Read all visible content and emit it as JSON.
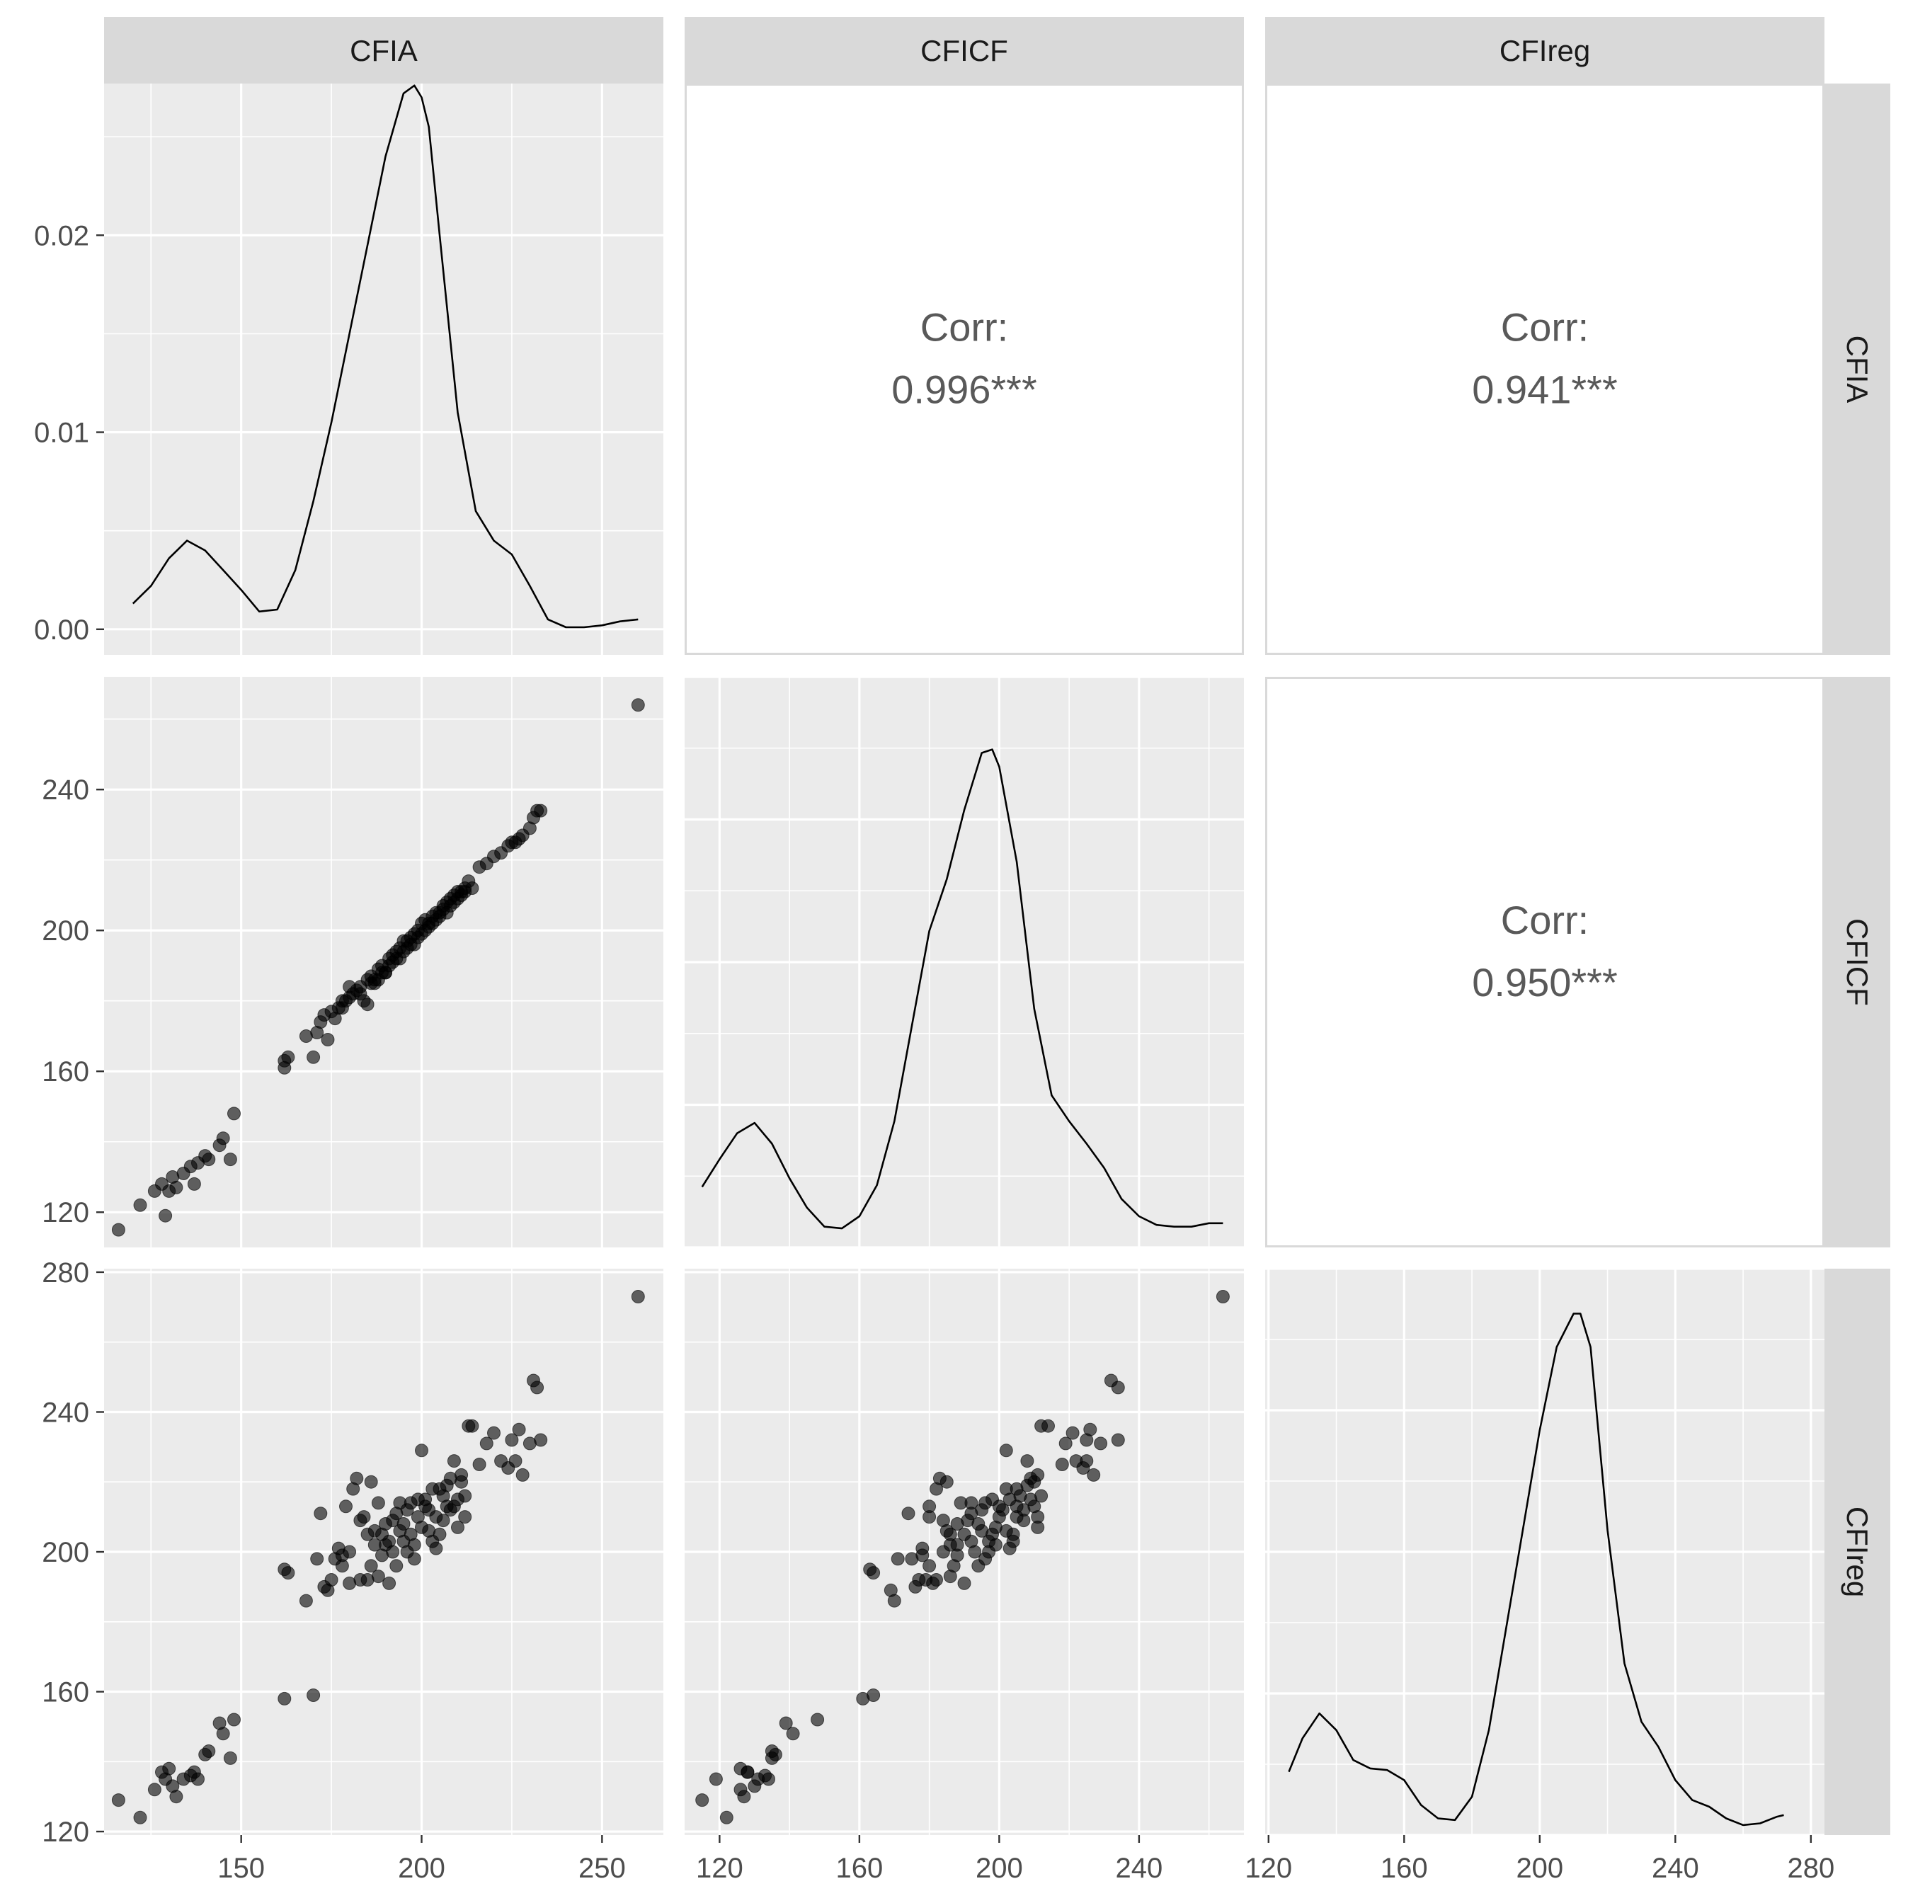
{
  "chart_data": {
    "type": "scatter",
    "title": "",
    "variables": [
      "CFIA",
      "CFICF",
      "CFIreg"
    ],
    "colors": {
      "panel_bg": "#ebebeb",
      "grid": "#ffffff",
      "strip_bg": "#d9d9d9",
      "point": "#000000",
      "line": "#000000",
      "text": "#4d4d4d",
      "corr_text": "#595959",
      "corr_panel_border": "#d9d9d9"
    },
    "x_axes": [
      {
        "range": [
          112,
          267
        ],
        "ticks": [
          150,
          200,
          250
        ],
        "labels": [
          "150",
          "200",
          "250"
        ]
      },
      {
        "range": [
          110,
          270
        ],
        "ticks": [
          120,
          160,
          200,
          240
        ],
        "labels": [
          "120",
          "160",
          "200",
          "240"
        ]
      },
      {
        "range": [
          119,
          284
        ],
        "ticks": [
          120,
          160,
          200,
          240,
          280
        ],
        "labels": [
          "120",
          "160",
          "200",
          "240",
          "280"
        ]
      }
    ],
    "y_axes": [
      {
        "range": [
          -0.0013,
          0.0277
        ],
        "ticks": [
          0.0,
          0.01,
          0.02
        ],
        "labels": [
          "0.00",
          "0.01",
          "0.02"
        ]
      },
      {
        "range": [
          110,
          272
        ],
        "ticks": [
          120,
          160,
          200,
          240
        ],
        "labels": [
          "120",
          "160",
          "200",
          "240"
        ]
      },
      {
        "range": [
          119,
          281
        ],
        "ticks": [
          120,
          160,
          200,
          240,
          280
        ],
        "labels": [
          "120",
          "160",
          "200",
          "240",
          "280"
        ]
      }
    ],
    "correlations": [
      {
        "row": 0,
        "col": 1,
        "label": "Corr:",
        "value": "0.996***"
      },
      {
        "row": 0,
        "col": 2,
        "label": "Corr:",
        "value": "0.941***"
      },
      {
        "row": 1,
        "col": 2,
        "label": "Corr:",
        "value": "0.950***"
      }
    ],
    "densities": {
      "CFIA": {
        "x": [
          120,
          125,
          130,
          135,
          140,
          145,
          150,
          155,
          160,
          165,
          170,
          175,
          180,
          185,
          190,
          195,
          198,
          200,
          202,
          205,
          210,
          215,
          220,
          225,
          230,
          235,
          240,
          245,
          250,
          255,
          260
        ],
        "y": [
          0.0013,
          0.0022,
          0.0036,
          0.0045,
          0.004,
          0.003,
          0.002,
          0.0009,
          0.001,
          0.003,
          0.0065,
          0.0105,
          0.015,
          0.0195,
          0.024,
          0.0272,
          0.0276,
          0.027,
          0.0255,
          0.02,
          0.011,
          0.006,
          0.0045,
          0.0038,
          0.0022,
          0.0005,
          0.0001,
          0.0001,
          0.0002,
          0.0004,
          0.0005
        ]
      },
      "CFICF": {
        "x": [
          115,
          120,
          125,
          130,
          135,
          140,
          145,
          150,
          155,
          160,
          165,
          170,
          175,
          180,
          185,
          190,
          195,
          198,
          200,
          205,
          210,
          215,
          220,
          225,
          230,
          235,
          240,
          245,
          250,
          255,
          260,
          264
        ],
        "y": [
          0.0027,
          0.0043,
          0.0058,
          0.0064,
          0.0052,
          0.0032,
          0.0015,
          0.0004,
          0.0003,
          0.001,
          0.0028,
          0.0065,
          0.012,
          0.0175,
          0.0205,
          0.0245,
          0.0278,
          0.028,
          0.027,
          0.0215,
          0.013,
          0.008,
          0.0065,
          0.0052,
          0.0038,
          0.002,
          0.001,
          0.0005,
          0.0004,
          0.0004,
          0.0006,
          0.0006
        ]
      },
      "CFIreg": {
        "x": [
          126,
          130,
          135,
          140,
          145,
          150,
          155,
          160,
          165,
          170,
          175,
          180,
          185,
          190,
          195,
          200,
          205,
          210,
          212,
          215,
          220,
          225,
          230,
          235,
          240,
          245,
          250,
          255,
          260,
          265,
          270,
          272
        ],
        "y": [
          0.0035,
          0.0055,
          0.007,
          0.006,
          0.0042,
          0.0037,
          0.0036,
          0.003,
          0.0015,
          0.0007,
          0.0006,
          0.002,
          0.006,
          0.012,
          0.018,
          0.024,
          0.029,
          0.031,
          0.031,
          0.029,
          0.018,
          0.01,
          0.0065,
          0.005,
          0.003,
          0.0018,
          0.0014,
          0.0007,
          0.0003,
          0.0004,
          0.0008,
          0.0009
        ]
      }
    },
    "density_y_ranges": {
      "CFICF": [
        -0.0008,
        0.0322
      ],
      "CFIreg": [
        -0.0003,
        0.0337
      ]
    },
    "points": [
      [
        116,
        115,
        129
      ],
      [
        122,
        122,
        124
      ],
      [
        126,
        126,
        132
      ],
      [
        128,
        128,
        137
      ],
      [
        129,
        119,
        135
      ],
      [
        130,
        126,
        138
      ],
      [
        131,
        130,
        133
      ],
      [
        132,
        127,
        130
      ],
      [
        134,
        131,
        135
      ],
      [
        136,
        133,
        136
      ],
      [
        137,
        128,
        137
      ],
      [
        138,
        134,
        135
      ],
      [
        140,
        136,
        142
      ],
      [
        141,
        135,
        143
      ],
      [
        144,
        139,
        151
      ],
      [
        145,
        141,
        148
      ],
      [
        147,
        135,
        141
      ],
      [
        148,
        148,
        152
      ],
      [
        162,
        161,
        158
      ],
      [
        163,
        164,
        194
      ],
      [
        162,
        163,
        195
      ],
      [
        168,
        170,
        186
      ],
      [
        170,
        164,
        159
      ],
      [
        171,
        171,
        198
      ],
      [
        172,
        174,
        211
      ],
      [
        173,
        176,
        190
      ],
      [
        174,
        169,
        189
      ],
      [
        175,
        177,
        192
      ],
      [
        176,
        175,
        198
      ],
      [
        177,
        178,
        201
      ],
      [
        178,
        180,
        196
      ],
      [
        179,
        180,
        213
      ],
      [
        180,
        184,
        200
      ],
      [
        181,
        182,
        218
      ],
      [
        182,
        183,
        221
      ],
      [
        183,
        182,
        192
      ],
      [
        184,
        180,
        210
      ],
      [
        185,
        179,
        192
      ],
      [
        186,
        185,
        220
      ],
      [
        187,
        186,
        202
      ],
      [
        188,
        186,
        193
      ],
      [
        189,
        190,
        205
      ],
      [
        190,
        188,
        208
      ],
      [
        191,
        190,
        191
      ],
      [
        192,
        193,
        200
      ],
      [
        193,
        194,
        196
      ],
      [
        194,
        192,
        214
      ],
      [
        195,
        197,
        203
      ],
      [
        196,
        195,
        212
      ],
      [
        197,
        198,
        205
      ],
      [
        198,
        196,
        198
      ],
      [
        199,
        200,
        210
      ],
      [
        200,
        199,
        207
      ],
      [
        200,
        202,
        229
      ],
      [
        201,
        203,
        215
      ],
      [
        202,
        201,
        212
      ],
      [
        203,
        204,
        203
      ],
      [
        204,
        203,
        201
      ],
      [
        205,
        205,
        218
      ],
      [
        206,
        207,
        209
      ],
      [
        207,
        205,
        213
      ],
      [
        208,
        209,
        221
      ],
      [
        209,
        208,
        226
      ],
      [
        210,
        211,
        207
      ],
      [
        211,
        210,
        220
      ],
      [
        212,
        212,
        216
      ],
      [
        213,
        214,
        236
      ],
      [
        214,
        212,
        236
      ],
      [
        216,
        218,
        225
      ],
      [
        218,
        219,
        231
      ],
      [
        220,
        221,
        234
      ],
      [
        222,
        222,
        226
      ],
      [
        224,
        224,
        224
      ],
      [
        225,
        225,
        232
      ],
      [
        226,
        225,
        226
      ],
      [
        227,
        226,
        235
      ],
      [
        228,
        227,
        222
      ],
      [
        230,
        229,
        231
      ],
      [
        231,
        232,
        249
      ],
      [
        232,
        234,
        247
      ],
      [
        233,
        234,
        232
      ],
      [
        260,
        264,
        273
      ],
      [
        190,
        188,
        202
      ],
      [
        192,
        191,
        209
      ],
      [
        193,
        192,
        211
      ],
      [
        195,
        194,
        208
      ],
      [
        196,
        197,
        200
      ],
      [
        197,
        196,
        214
      ],
      [
        198,
        199,
        202
      ],
      [
        199,
        198,
        215
      ],
      [
        201,
        200,
        213
      ],
      [
        202,
        202,
        206
      ],
      [
        203,
        202,
        218
      ],
      [
        204,
        205,
        210
      ],
      [
        205,
        204,
        205
      ],
      [
        206,
        206,
        216
      ],
      [
        207,
        208,
        219
      ],
      [
        208,
        207,
        212
      ],
      [
        209,
        210,
        213
      ],
      [
        210,
        209,
        215
      ],
      [
        211,
        211,
        222
      ],
      [
        212,
        211,
        210
      ],
      [
        186,
        187,
        196
      ],
      [
        188,
        189,
        214
      ],
      [
        189,
        188,
        199
      ],
      [
        191,
        192,
        203
      ],
      [
        194,
        195,
        206
      ],
      [
        178,
        178,
        199
      ],
      [
        180,
        181,
        191
      ],
      [
        183,
        184,
        209
      ],
      [
        185,
        186,
        205
      ],
      [
        187,
        185,
        206
      ]
    ]
  }
}
